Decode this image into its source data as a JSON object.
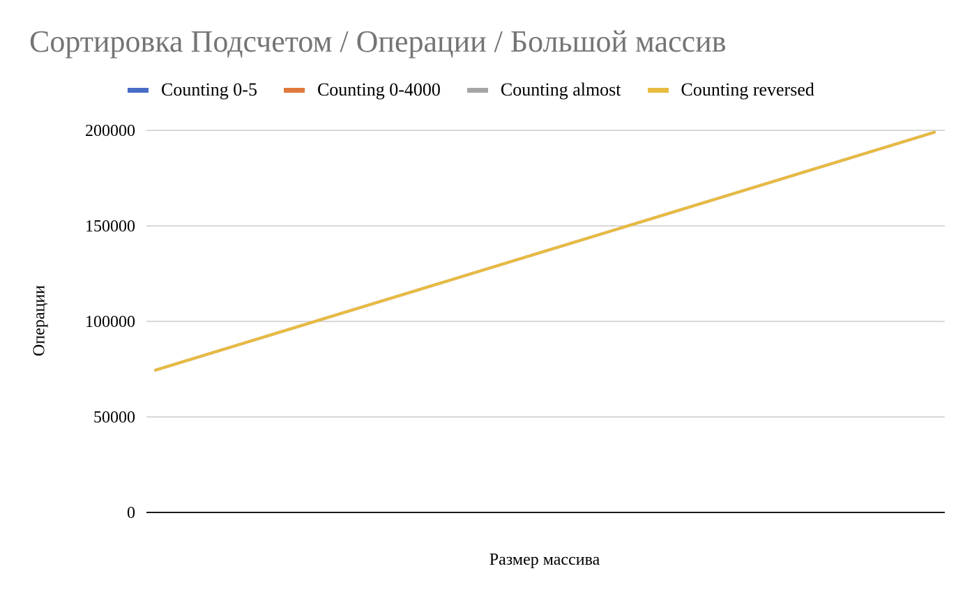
{
  "chart_data": {
    "type": "line",
    "title": "Сортировка Подсчетом / Операции / Большой массив",
    "xlabel": "Размер массива",
    "ylabel": "Операции",
    "ylim": [
      0,
      200000
    ],
    "yticks": [
      "0",
      "50000",
      "100000",
      "150000",
      "200000"
    ],
    "grid": true,
    "legend_position": "top",
    "x": [
      1,
      2
    ],
    "series": [
      {
        "name": "Counting 0-5",
        "color": "#4a6cc6",
        "values": [
          74500,
          199000
        ]
      },
      {
        "name": "Counting 0-4000",
        "color": "#e07a3c",
        "values": [
          74500,
          199000
        ]
      },
      {
        "name": "Counting almost",
        "color": "#a5a5a5",
        "values": [
          74500,
          199000
        ]
      },
      {
        "name": "Counting reversed",
        "color": "#e8bb41",
        "values": [
          74500,
          199000
        ]
      }
    ]
  }
}
